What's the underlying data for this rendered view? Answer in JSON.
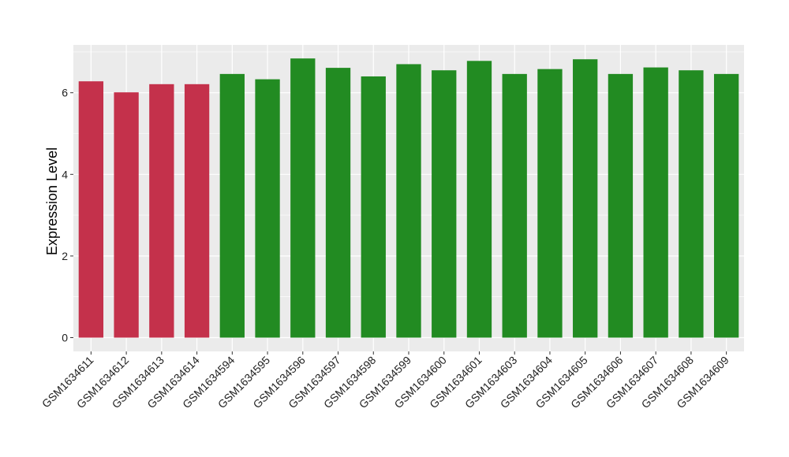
{
  "chart_data": {
    "type": "bar",
    "title": "",
    "xlabel": "",
    "ylabel": "Expression Level",
    "ylim": [
      0,
      7.25
    ],
    "y_ticks": [
      0,
      2,
      4,
      6
    ],
    "grid": true,
    "legend": "none",
    "categories": [
      "GSM1634611",
      "GSM1634612",
      "GSM1634613",
      "GSM1634614",
      "GSM1634594",
      "GSM1634595",
      "GSM1634596",
      "GSM1634597",
      "GSM1634598",
      "GSM1634599",
      "GSM1634600",
      "GSM1634601",
      "GSM1634603",
      "GSM1634604",
      "GSM1634605",
      "GSM1634606",
      "GSM1634607",
      "GSM1634608",
      "GSM1634609"
    ],
    "values": [
      6.28,
      6.01,
      6.21,
      6.21,
      6.46,
      6.33,
      6.84,
      6.61,
      6.4,
      6.7,
      6.55,
      6.78,
      6.46,
      6.58,
      6.82,
      6.46,
      6.62,
      6.55,
      6.46
    ],
    "bar_colors": [
      "#C4314B",
      "#C4314B",
      "#C4314B",
      "#C4314B",
      "#228B22",
      "#228B22",
      "#228B22",
      "#228B22",
      "#228B22",
      "#228B22",
      "#228B22",
      "#228B22",
      "#228B22",
      "#228B22",
      "#228B22",
      "#228B22",
      "#228B22",
      "#228B22",
      "#228B22"
    ],
    "panel_background": "#EBEBEB",
    "grid_color": "#FFFFFF"
  }
}
